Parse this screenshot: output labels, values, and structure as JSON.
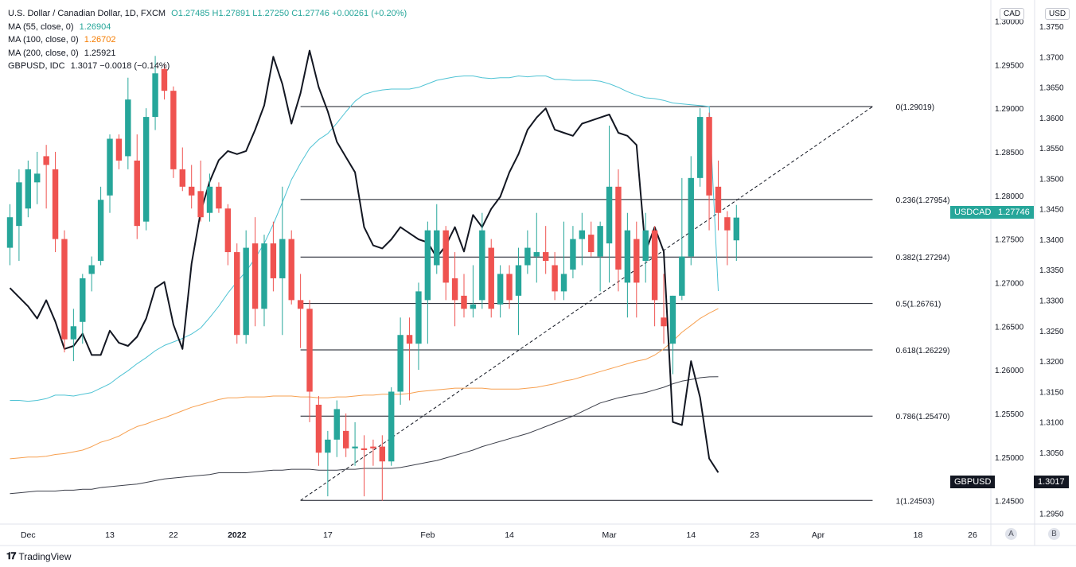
{
  "legend": {
    "title": "U.S. Dollar / Canadian Dollar, 1D, FXCM",
    "ohlc": "O1.27485  H1.27891  L1.27250  C1.27746  +0.00261 (+0.20%)",
    "ma55_label": "MA (55, close, 0)",
    "ma55_value": "1.26904",
    "ma100_label": "MA (100, close, 0)",
    "ma100_value": "1.26702",
    "ma200_label": "MA (200, close, 0)",
    "ma200_value": "1.25921",
    "gbp_label": "GBPUSD, IDC",
    "gbp_value": "1.3017  −0.0018 (−0.14%)"
  },
  "brand": {
    "name": "TradingView"
  },
  "axes": {
    "left_unit": "CAD",
    "right_unit": "USD",
    "pane_a": "A",
    "pane_b": "B"
  },
  "tags": {
    "usdcad_label": "USDCAD",
    "usdcad_value": "1.27746",
    "gbpusd_label": "GBPUSD",
    "gbpusd_value": "1.3017"
  },
  "colors": {
    "up": "#26a69a",
    "down": "#ef5350",
    "ma55": "#4fc3d4",
    "ma100": "#f7a050",
    "ma200": "#3c3f4a",
    "gbpusd": "#131722"
  },
  "chart_data": {
    "type": "candlestick",
    "usdcad_axis": {
      "ylim": [
        1.2425,
        1.3015
      ],
      "ticks": [
        "1.24500",
        "1.25000",
        "1.25500",
        "1.26000",
        "1.26500",
        "1.27000",
        "1.27500",
        "1.28000",
        "1.28500",
        "1.29000",
        "1.29500",
        "1.30000"
      ]
    },
    "gbpusd_axis": {
      "ylim": [
        1.2935,
        1.378
      ],
      "ticks": [
        "1.2950",
        "1.3000",
        "1.3050",
        "1.3100",
        "1.3150",
        "1.3200",
        "1.3250",
        "1.3300",
        "1.3350",
        "1.3400",
        "1.3450",
        "1.3500",
        "1.3550",
        "1.3600",
        "1.3650",
        "1.3700",
        "1.3750"
      ]
    },
    "x_ticks": [
      {
        "label": "Dec",
        "i": 2
      },
      {
        "label": "13",
        "i": 11
      },
      {
        "label": "22",
        "i": 18
      },
      {
        "label": "2022",
        "i": 25
      },
      {
        "label": "17",
        "i": 35
      },
      {
        "label": "Feb",
        "i": 46
      },
      {
        "label": "14",
        "i": 55
      },
      {
        "label": "Mar",
        "i": 66
      },
      {
        "label": "14",
        "i": 75
      },
      {
        "label": "23",
        "i": 82
      },
      {
        "label": "Apr",
        "i": 89
      },
      {
        "label": "18",
        "i": 100
      },
      {
        "label": "26",
        "i": 106
      }
    ],
    "candles": [
      [
        1.274,
        1.279,
        1.272,
        1.2775
      ],
      [
        1.2765,
        1.283,
        1.2725,
        1.2815
      ],
      [
        1.2785,
        1.284,
        1.2775,
        1.283
      ],
      [
        1.2815,
        1.285,
        1.279,
        1.2825
      ],
      [
        1.2845,
        1.2858,
        1.2785,
        1.2835
      ],
      [
        1.283,
        1.285,
        1.2735,
        1.275
      ],
      [
        1.275,
        1.276,
        1.262,
        1.2635
      ],
      [
        1.2635,
        1.267,
        1.261,
        1.265
      ],
      [
        1.2655,
        1.271,
        1.263,
        1.2705
      ],
      [
        1.271,
        1.273,
        1.269,
        1.272
      ],
      [
        1.2725,
        1.281,
        1.272,
        1.2795
      ],
      [
        1.28,
        1.287,
        1.278,
        1.2865
      ],
      [
        1.2865,
        1.287,
        1.283,
        1.284
      ],
      [
        1.2845,
        1.2935,
        1.283,
        1.291
      ],
      [
        1.284,
        1.287,
        1.275,
        1.2765
      ],
      [
        1.277,
        1.29,
        1.276,
        1.289
      ],
      [
        1.289,
        1.296,
        1.2875,
        1.294
      ],
      [
        1.2945,
        1.295,
        1.291,
        1.292
      ],
      [
        1.292,
        1.2925,
        1.282,
        1.283
      ],
      [
        1.283,
        1.2855,
        1.2805,
        1.281
      ],
      [
        1.281,
        1.2835,
        1.2785,
        1.28
      ],
      [
        1.2805,
        1.284,
        1.277,
        1.2775
      ],
      [
        1.278,
        1.2825,
        1.277,
        1.281
      ],
      [
        1.281,
        1.2815,
        1.278,
        1.2785
      ],
      [
        1.2785,
        1.279,
        1.272,
        1.2735
      ],
      [
        1.2735,
        1.2745,
        1.263,
        1.264
      ],
      [
        1.264,
        1.276,
        1.263,
        1.274
      ],
      [
        1.2745,
        1.2775,
        1.265,
        1.267
      ],
      [
        1.267,
        1.2755,
        1.265,
        1.2745
      ],
      [
        1.2745,
        1.277,
        1.269,
        1.2705
      ],
      [
        1.2705,
        1.281,
        1.264,
        1.275
      ],
      [
        1.275,
        1.276,
        1.2675,
        1.268
      ],
      [
        1.268,
        1.271,
        1.2625,
        1.267
      ],
      [
        1.267,
        1.268,
        1.254,
        1.2575
      ],
      [
        1.256,
        1.257,
        1.249,
        1.2505
      ],
      [
        1.2505,
        1.253,
        1.2455,
        1.252
      ],
      [
        1.252,
        1.2565,
        1.25,
        1.2555
      ],
      [
        1.253,
        1.255,
        1.25,
        1.251
      ],
      [
        1.251,
        1.254,
        1.249,
        1.2512
      ],
      [
        1.251,
        1.2525,
        1.2455,
        1.2508
      ],
      [
        1.2512,
        1.252,
        1.249,
        1.251
      ],
      [
        1.2512,
        1.2525,
        1.245,
        1.2495
      ],
      [
        1.2495,
        1.258,
        1.249,
        1.2575
      ],
      [
        1.2575,
        1.266,
        1.256,
        1.264
      ],
      [
        1.264,
        1.266,
        1.2565,
        1.263
      ],
      [
        1.263,
        1.27,
        1.26,
        1.269
      ],
      [
        1.268,
        1.277,
        1.263,
        1.276
      ],
      [
        1.272,
        1.279,
        1.271,
        1.276
      ],
      [
        1.276,
        1.2765,
        1.268,
        1.27
      ],
      [
        1.2705,
        1.2735,
        1.265,
        1.268
      ],
      [
        1.2685,
        1.271,
        1.266,
        1.267
      ],
      [
        1.267,
        1.272,
        1.266,
        1.2675
      ],
      [
        1.268,
        1.278,
        1.267,
        1.276
      ],
      [
        1.274,
        1.275,
        1.266,
        1.267
      ],
      [
        1.2675,
        1.272,
        1.266,
        1.271
      ],
      [
        1.271,
        1.272,
        1.267,
        1.268
      ],
      [
        1.2685,
        1.274,
        1.264,
        1.272
      ],
      [
        1.272,
        1.276,
        1.271,
        1.274
      ],
      [
        1.273,
        1.278,
        1.27,
        1.2735
      ],
      [
        1.2735,
        1.2765,
        1.271,
        1.2725
      ],
      [
        1.272,
        1.2735,
        1.268,
        1.269
      ],
      [
        1.269,
        1.277,
        1.268,
        1.271
      ],
      [
        1.2715,
        1.2765,
        1.2705,
        1.275
      ],
      [
        1.275,
        1.278,
        1.272,
        1.276
      ],
      [
        1.2755,
        1.277,
        1.273,
        1.2735
      ],
      [
        1.273,
        1.277,
        1.269,
        1.2765
      ],
      [
        1.2745,
        1.288,
        1.27,
        1.281
      ],
      [
        1.281,
        1.283,
        1.269,
        1.2715
      ],
      [
        1.27,
        1.278,
        1.266,
        1.276
      ],
      [
        1.275,
        1.277,
        1.266,
        1.27
      ],
      [
        1.2725,
        1.278,
        1.27,
        1.276
      ],
      [
        1.276,
        1.2765,
        1.265,
        1.268
      ],
      [
        1.266,
        1.271,
        1.263,
        1.265
      ],
      [
        1.263,
        1.2685,
        1.2595,
        1.2685
      ],
      [
        1.2685,
        1.282,
        1.268,
        1.273
      ],
      [
        1.273,
        1.2845,
        1.272,
        1.282
      ],
      [
        1.282,
        1.29,
        1.281,
        1.289
      ],
      [
        1.289,
        1.2895,
        1.276,
        1.28
      ],
      [
        1.281,
        1.284,
        1.276,
        1.278
      ],
      [
        1.2775,
        1.2782,
        1.272,
        1.276
      ],
      [
        1.27485,
        1.27891,
        1.2725,
        1.27746
      ]
    ],
    "series": [
      {
        "name": "MA (55, close, 0)",
        "values": [
          1.2565,
          1.2565,
          1.2564,
          1.2565,
          1.2567,
          1.2571,
          1.2571,
          1.257,
          1.2572,
          1.2574,
          1.2579,
          1.2584,
          1.2592,
          1.2599,
          1.2607,
          1.2614,
          1.2622,
          1.2628,
          1.2632,
          1.2636,
          1.2641,
          1.2648,
          1.266,
          1.2673,
          1.2688,
          1.2701,
          1.2713,
          1.2728,
          1.2745,
          1.2767,
          1.2792,
          1.2818,
          1.2837,
          1.2854,
          1.2864,
          1.2871,
          1.2883,
          1.2896,
          1.2908,
          1.2916,
          1.2919,
          1.2921,
          1.2922,
          1.2922,
          1.2922,
          1.2924,
          1.2928,
          1.2932,
          1.2934,
          1.2936,
          1.2937,
          1.2937,
          1.2935,
          1.2934,
          1.2935,
          1.2935,
          1.2937,
          1.2936,
          1.2937,
          1.2937,
          1.2933,
          1.2933,
          1.2932,
          1.2932,
          1.2932,
          1.2931,
          1.2928,
          1.2924,
          1.2919,
          1.2915,
          1.2912,
          1.2911,
          1.2909,
          1.2906,
          1.2905,
          1.2904,
          1.2903,
          1.2902,
          1.26904
        ]
      },
      {
        "name": "MA (100, close, 0)",
        "values": [
          1.2498,
          1.2499,
          1.25,
          1.25,
          1.2501,
          1.2503,
          1.2504,
          1.2506,
          1.2508,
          1.2512,
          1.2517,
          1.252,
          1.2524,
          1.253,
          1.2535,
          1.2538,
          1.2542,
          1.2545,
          1.2549,
          1.2553,
          1.2557,
          1.256,
          1.2563,
          1.2566,
          1.2568,
          1.2568,
          1.2569,
          1.2569,
          1.2569,
          1.257,
          1.257,
          1.257,
          1.2569,
          1.2569,
          1.2568,
          1.2568,
          1.2569,
          1.2569,
          1.257,
          1.2571,
          1.2571,
          1.2572,
          1.2572,
          1.2572,
          1.2573,
          1.2575,
          1.2576,
          1.2577,
          1.2578,
          1.2579,
          1.2579,
          1.2579,
          1.2579,
          1.2578,
          1.2578,
          1.2578,
          1.2578,
          1.2579,
          1.258,
          1.2582,
          1.2584,
          1.2587,
          1.2589,
          1.2592,
          1.2595,
          1.2598,
          1.2601,
          1.2604,
          1.2607,
          1.261,
          1.2612,
          1.2617,
          1.2624,
          1.2633,
          1.2643,
          1.2651,
          1.2659,
          1.2665,
          1.26702
        ]
      },
      {
        "name": "MA (200, close, 0)",
        "values": [
          1.2458,
          1.2459,
          1.246,
          1.2461,
          1.2461,
          1.2461,
          1.2462,
          1.2462,
          1.2463,
          1.2463,
          1.2465,
          1.2466,
          1.2467,
          1.2468,
          1.2469,
          1.2471,
          1.2473,
          1.2475,
          1.2476,
          1.2477,
          1.2478,
          1.2479,
          1.248,
          1.2482,
          1.2482,
          1.2482,
          1.2482,
          1.2483,
          1.2484,
          1.2485,
          1.2485,
          1.2486,
          1.2486,
          1.2486,
          1.2485,
          1.2485,
          1.2485,
          1.2486,
          1.2486,
          1.2487,
          1.2487,
          1.2487,
          1.2487,
          1.2488,
          1.249,
          1.2492,
          1.2494,
          1.2496,
          1.2499,
          1.2502,
          1.2505,
          1.2508,
          1.2512,
          1.2515,
          1.2518,
          1.2521,
          1.2524,
          1.2527,
          1.2531,
          1.2535,
          1.2539,
          1.2543,
          1.2547,
          1.2552,
          1.2557,
          1.2562,
          1.2565,
          1.2568,
          1.257,
          1.2572,
          1.2574,
          1.2577,
          1.258,
          1.2584,
          1.2587,
          1.2589,
          1.2591,
          1.2592,
          1.25921
        ]
      },
      {
        "name": "GBPUSD, IDC",
        "values": [
          1.332,
          1.3305,
          1.329,
          1.327,
          1.33,
          1.3265,
          1.322,
          1.3225,
          1.3245,
          1.321,
          1.321,
          1.325,
          1.323,
          1.3225,
          1.324,
          1.327,
          1.332,
          1.333,
          1.326,
          1.322,
          1.336,
          1.3445,
          1.3495,
          1.353,
          1.3545,
          1.354,
          1.3545,
          1.358,
          1.362,
          1.37,
          1.3655,
          1.359,
          1.364,
          1.371,
          1.365,
          1.361,
          1.356,
          1.3535,
          1.351,
          1.342,
          1.339,
          1.3385,
          1.34,
          1.342,
          1.341,
          1.34,
          1.3395,
          1.337,
          1.339,
          1.342,
          1.338,
          1.344,
          1.342,
          1.345,
          1.347,
          1.351,
          1.354,
          1.358,
          1.36,
          1.3615,
          1.358,
          1.3575,
          1.357,
          1.359,
          1.3595,
          1.36,
          1.3605,
          1.3575,
          1.357,
          1.3555,
          1.338,
          1.342,
          1.338,
          1.31,
          1.3095,
          1.32,
          1.314,
          1.304,
          1.3017
        ]
      }
    ],
    "fibonacci": {
      "start_index": 32,
      "end_index": 95,
      "label_index": 98,
      "levels": [
        {
          "label": "0(1.29019)",
          "value": 1.29019
        },
        {
          "label": "0.236(1.27954)",
          "value": 1.27954
        },
        {
          "label": "0.382(1.27294)",
          "value": 1.27294
        },
        {
          "label": "0.5(1.26761)",
          "value": 1.26761
        },
        {
          "label": "0.618(1.26229)",
          "value": 1.26229
        },
        {
          "label": "0.786(1.25470)",
          "value": 1.2547
        },
        {
          "label": "1(1.24503)",
          "value": 1.24503
        }
      ]
    },
    "trend_line": {
      "from": {
        "index": 32,
        "value": 1.24503
      },
      "to": {
        "index": 95,
        "value": 1.29019
      }
    }
  }
}
